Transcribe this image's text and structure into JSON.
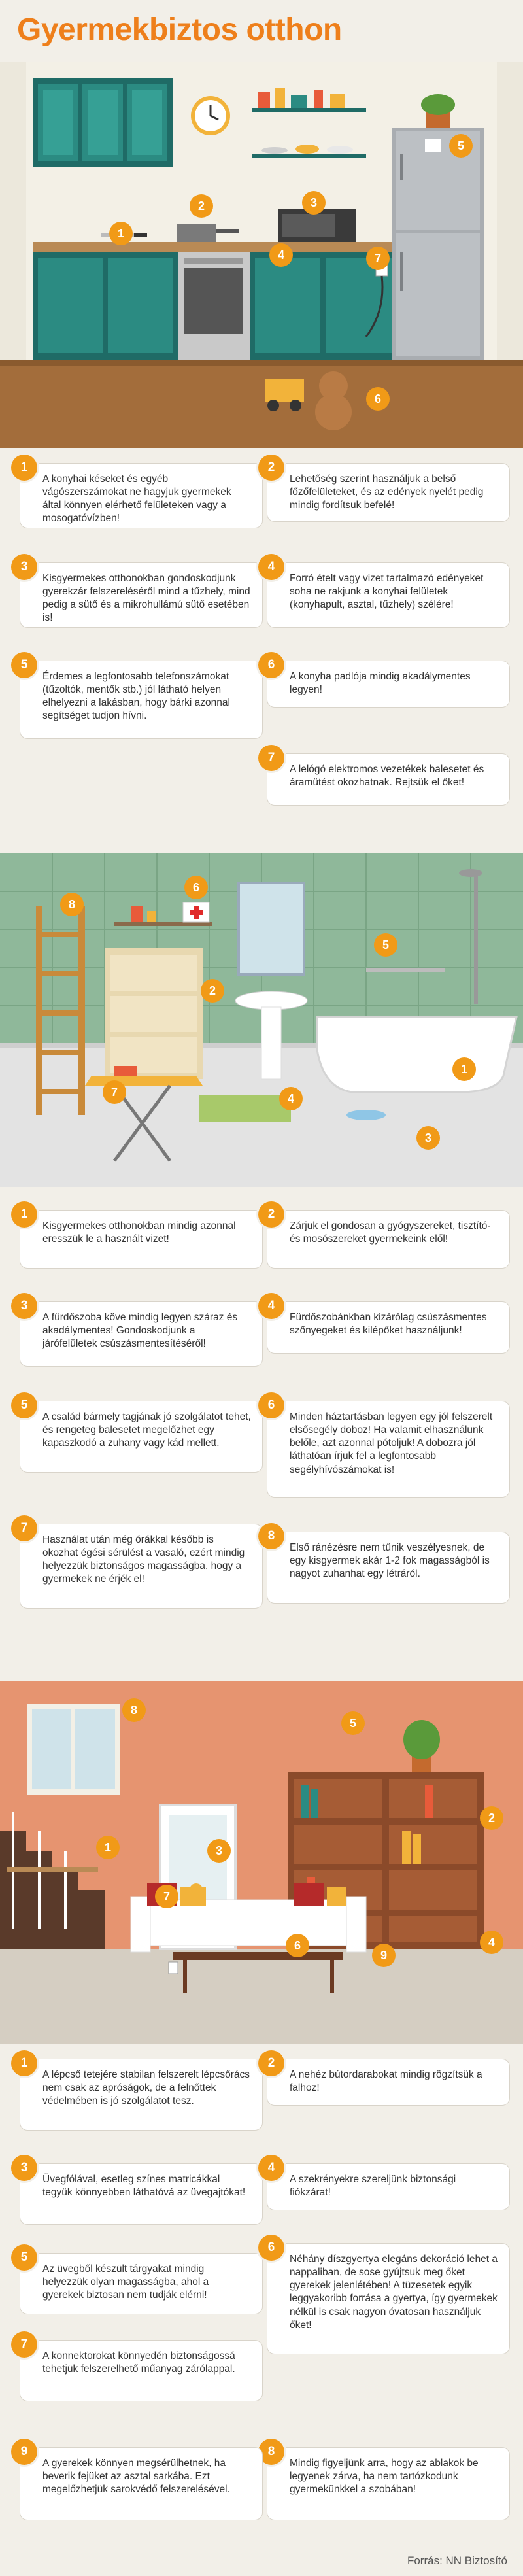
{
  "title": "Gyermekbiztos otthon",
  "colors": {
    "accent": "#f19a17",
    "title": "#ee7f1b",
    "card_border": "#d9d4ca"
  },
  "kitchen_tips": [
    {
      "n": "1",
      "text": "A konyhai késeket és egyéb vágószerszámokat ne hagyjuk gyermekek által könnyen elérhető felületeken vagy a mosogatóvízben!"
    },
    {
      "n": "2",
      "text": "Lehetőség szerint használjuk a belső főzőfelületeket, és az edények nyelét pedig mindig fordítsuk befelé!"
    },
    {
      "n": "3",
      "text": "Kisgyermekes otthonokban gondoskodjunk gyerekzár felszereléséről mind a tűzhely, mind pedig a sütő és a mikrohullámú sütő esetében is!"
    },
    {
      "n": "4",
      "text": "Forró ételt vagy vizet tartalmazó edényeket soha ne rakjunk a konyhai felületek (konyhapult, asztal, tűzhely) szélére!"
    },
    {
      "n": "5",
      "text": "Érdemes a legfontosabb telefonszámokat (tűzoltók, mentők stb.) jól látható helyen elhelyezni a lakásban, hogy bárki azonnal segítséget tudjon hívni."
    },
    {
      "n": "6",
      "text": "A konyha padlója mindig akadálymentes legyen!"
    },
    {
      "n": "7",
      "text": "A lelógó elektromos vezetékek balesetet és áramütést okozhatnak. Rejtsük el őket!"
    }
  ],
  "bathroom_tips": [
    {
      "n": "1",
      "text": "Kisgyermekes otthonokban mindig azonnal eresszük le a használt vizet!"
    },
    {
      "n": "2",
      "text": "Zárjuk el gondosan a gyógyszereket, tisztító- és mosószereket gyermekeink elől!"
    },
    {
      "n": "3",
      "text": "A fürdőszoba köve mindig legyen száraz és akadálymentes! Gondoskodjunk a járófelületek csúszásmentesítéséről!"
    },
    {
      "n": "4",
      "text": "Fürdőszobánkban kizárólag csúszásmentes szőnyegeket és kilépőket használjunk!"
    },
    {
      "n": "5",
      "text": "A család bármely tagjának jó szolgálatot tehet, és rengeteg balesetet megelőzhet egy kapaszkodó a zuhany vagy kád mellett."
    },
    {
      "n": "6",
      "text": "Minden háztartásban legyen egy jól felszerelt elsősegély doboz! Ha valamit elhasználunk belőle, azt azonnal pótoljuk! A dobozra jól láthatóan írjuk fel a legfontosabb segélyhívószámokat is!"
    },
    {
      "n": "7",
      "text": "Használat után még órákkal később is okozhat égési sérülést a vasaló, ezért mindig helyezzük biztonságos magasságba, hogy a gyermekek ne érjék el!"
    },
    {
      "n": "8",
      "text": "Első ránézésre nem tűnik veszélyesnek, de egy kisgyermek akár 1-2 fok magasságból is nagyot zuhanhat egy létráról."
    }
  ],
  "living_tips": [
    {
      "n": "1",
      "text": "A lépcső tetejére stabilan felszerelt lépcsőrács nem csak az apróságok, de a felnőttek védelmében is jó szolgálatot tesz."
    },
    {
      "n": "2",
      "text": "A nehéz bútordarabokat mindig rögzítsük a falhoz!"
    },
    {
      "n": "3",
      "text": "Üvegfólával, esetleg színes matricákkal tegyük könnyebben láthatóvá az üvegajtókat!"
    },
    {
      "n": "4",
      "text": "A szekrényekre szereljünk biztonsági fiókzárat!"
    },
    {
      "n": "5",
      "text": "Az üvegből készült tárgyakat mindig helyezzük olyan magasságba, ahol a gyerekek biztosan nem tudják elérni!"
    },
    {
      "n": "6",
      "text": "Néhány díszgyertya elegáns dekoráció lehet a nappaliban, de sose gyújtsuk meg őket gyerekek jelenlétében! A tüzesetek egyik leggyakoribb forrása a gyertya, így gyermekek nélkül is csak nagyon óvatosan használjuk őket!"
    },
    {
      "n": "7",
      "text": "A konnektorokat könnyedén biztonságossá tehetjük felszerelhető műanyag zárólappal."
    },
    {
      "n": "8",
      "text": "Mindig figyeljünk arra, hogy az ablakok be legyenek zárva, ha nem tartózkodunk gyermekünkkel a szobában!"
    },
    {
      "n": "9",
      "text": "A gyerekek könnyen megsérülhetnek, ha beverik fejüket az asztal sarkába. Ezt megelőzhetjük sarokvédő felszerelésével."
    }
  ],
  "scene_markers": {
    "kitchen": [
      "1",
      "2",
      "3",
      "4",
      "5",
      "6",
      "7"
    ],
    "bathroom": [
      "1",
      "2",
      "3",
      "4",
      "5",
      "6",
      "7",
      "8"
    ],
    "living": [
      "1",
      "2",
      "3",
      "4",
      "5",
      "6",
      "7",
      "8",
      "9"
    ]
  },
  "source": "Forrás: NN Biztosító"
}
